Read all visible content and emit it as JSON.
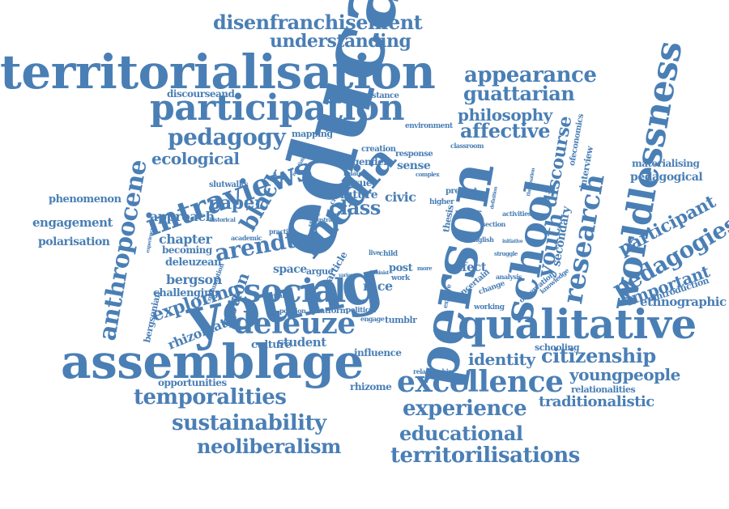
{
  "colors": {
    "word": "#4a7fb5",
    "background": "#ffffff"
  },
  "words": {
    "education": "education",
    "person": "person",
    "young": "young",
    "assemblage": "assemblage",
    "territorialisation": "territorialisation",
    "participation": "participation",
    "qualitative": "qualitative",
    "worldlessness": "worldlessness",
    "media": "media",
    "school": "school",
    "intraviews": "intraviews",
    "social": "social",
    "deleuze": "deleuze",
    "excellence": "excellence",
    "anthropocene": "anthropocene",
    "disenfranchisement": "disenfranchisement",
    "understanding": "understanding",
    "appearance": "appearance",
    "guattarian": "guattarian",
    "philosophy": "philosophy",
    "affective": "affective",
    "pedagogy": "pedagogy",
    "ecological": "ecological",
    "research": "research",
    "discourse": "discourse",
    "youth": "youth",
    "pedagogies": "pedagogies",
    "participant": "participant",
    "important": "important",
    "ethnographic": "ethnographic",
    "citizenship": "citizenship",
    "youngpeople": "youngpeople",
    "identity": "identity",
    "experience": "experience",
    "traditionalistic": "traditionalistic",
    "educational": "educational",
    "territorilisations": "territorilisations",
    "temporalities": "temporalities",
    "sustainability": "sustainability",
    "neoliberalism": "neoliberalism",
    "arendt": "arendt",
    "black": "black",
    "class": "class",
    "paper": "paper",
    "approach": "approach",
    "chapter": "chapter",
    "engagement": "engagement",
    "polarisation": "polarisation",
    "phenomenon": "phenomenon",
    "exploring": "exploring",
    "notion": "notion",
    "bergson": "bergson",
    "deleuzean": "deleuzean",
    "becoming": "becoming",
    "challenging": "challenging",
    "rhizomatic": "rhizomatic",
    "bergsonian": "bergsonian",
    "opportunities": "opportunities",
    "culture": "culture",
    "student": "student",
    "influence": "influence",
    "rhizome": "rhizome",
    "civic": "civic",
    "future": "future",
    "race": "race",
    "space": "space",
    "affect": "affect",
    "post": "post",
    "sense": "sense",
    "issue": "issue",
    "gender": "gender",
    "creation": "creation",
    "response": "response",
    "environment": "environment",
    "classroom": "classroom",
    "resistance": "resistance",
    "discourseand": "discourseand",
    "mapping": "mapping",
    "possibilities": "possibilities",
    "slutwalks": "slutwalks",
    "secondary": "secondary",
    "interview": "interview",
    "ofeconomics": "ofeconomics",
    "materialising": "materialising",
    "pedagogical": "pedagogical",
    "introduction": "introduction",
    "schooling": "schooling",
    "relationalities": "relationalities",
    "tumblr": "tumblr",
    "platform": "platform",
    "political": "political",
    "engage": "engage",
    "position": "position",
    "relationship": "relationship",
    "article": "article",
    "argue": "argue",
    "thesis": "thesis",
    "present": "present",
    "higher": "higher",
    "child": "child",
    "work": "work",
    "uncertain": "uncertain",
    "english": "english",
    "section": "section",
    "activities": "activities",
    "observation": "observation",
    "knowledge": "knowledge",
    "working": "working",
    "change": "change",
    "analysis": "analysis",
    "explore": "explore",
    "practice": "practice",
    "study": "study",
    "academic": "academic",
    "historical": "historical",
    "consumption": "consumption",
    "curricular": "curricular",
    "related": "related",
    "critical": "critical",
    "illustrate": "illustrate",
    "complex": "complex",
    "reductive": "reductive",
    "struggle": "struggle",
    "initiative": "initiative",
    "feminist": "feminist",
    "live": "live",
    "more": "more",
    "various": "various",
    "experienced": "experienced",
    "negotiate": "negotiate",
    "theorisation": "theorisation",
    "definition": "definition"
  }
}
